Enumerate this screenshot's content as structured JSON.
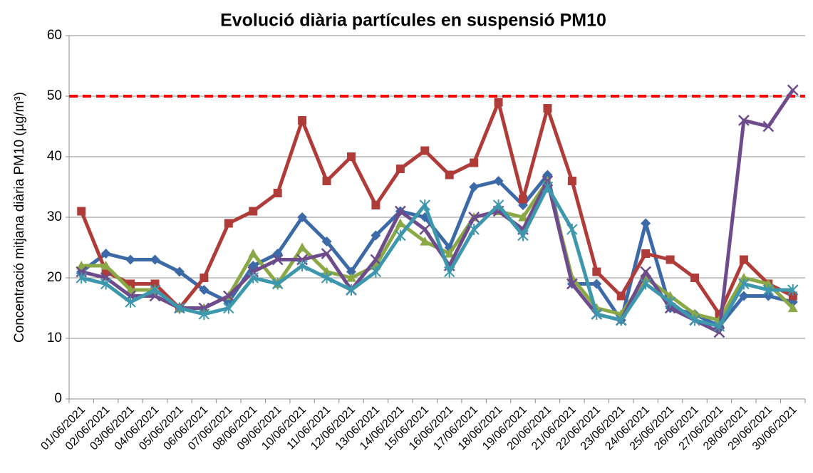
{
  "chart_data": {
    "type": "line",
    "title": "Evolució diària partícules en suspensió PM10",
    "y_label": "Concentració mitjana diària PM10 (µg/m³)",
    "categories": [
      "01/06/2021",
      "02/06/2021",
      "03/06/2021",
      "04/06/2021",
      "05/06/2021",
      "06/06/2021",
      "07/06/2021",
      "08/06/2021",
      "09/06/2021",
      "10/06/2021",
      "11/06/2021",
      "12/06/2021",
      "13/06/2021",
      "14/06/2021",
      "15/06/2021",
      "16/06/2021",
      "17/06/2021",
      "18/06/2021",
      "19/06/2021",
      "20/06/2021",
      "21/06/2021",
      "22/06/2021",
      "23/06/2021",
      "24/06/2021",
      "25/06/2021",
      "26/06/2021",
      "27/06/2021",
      "28/06/2021",
      "29/06/2021",
      "30/06/2021"
    ],
    "series": [
      {
        "color": "#3c6aa8",
        "marker": "diamond",
        "values": [
          21,
          24,
          23,
          23,
          21,
          18,
          16,
          22,
          24,
          30,
          26,
          21,
          27,
          31,
          30,
          25,
          35,
          36,
          32,
          37,
          19,
          19,
          13,
          29,
          15,
          14,
          12,
          17,
          17,
          16
        ]
      },
      {
        "color": "#b03c3a",
        "marker": "square",
        "values": [
          31,
          21,
          19,
          19,
          15,
          20,
          29,
          31,
          34,
          46,
          36,
          40,
          32,
          38,
          41,
          37,
          39,
          49,
          33,
          48,
          36,
          21,
          17,
          24,
          23,
          20,
          14,
          23,
          19,
          17
        ]
      },
      {
        "color": "#8aa845",
        "marker": "triangle",
        "values": [
          22,
          22,
          18,
          18,
          15,
          15,
          17,
          24,
          19,
          25,
          21,
          20,
          22,
          29,
          26,
          24,
          30,
          31,
          30,
          36,
          20,
          15,
          14,
          20,
          17,
          14,
          13,
          20,
          19,
          15
        ]
      },
      {
        "color": "#6e4c8c",
        "marker": "x",
        "values": [
          21,
          20,
          17,
          17,
          15,
          15,
          17,
          21,
          23,
          23,
          24,
          18,
          23,
          31,
          28,
          22,
          30,
          31,
          28,
          36,
          19,
          14,
          13,
          21,
          15,
          13,
          11,
          46,
          45,
          51
        ]
      },
      {
        "color": "#3d97ad",
        "marker": "asterisk",
        "values": [
          20,
          19,
          16,
          18,
          15,
          14,
          15,
          20,
          19,
          22,
          20,
          18,
          21,
          27,
          32,
          21,
          28,
          32,
          27,
          35,
          28,
          14,
          13,
          19,
          16,
          13,
          12,
          19,
          18,
          18
        ]
      }
    ],
    "reference_line": {
      "value": 50,
      "color": "#ff0000"
    },
    "ylim": [
      0,
      60
    ],
    "yticks": [
      0,
      10,
      20,
      30,
      40,
      50,
      60
    ],
    "grid": true
  }
}
